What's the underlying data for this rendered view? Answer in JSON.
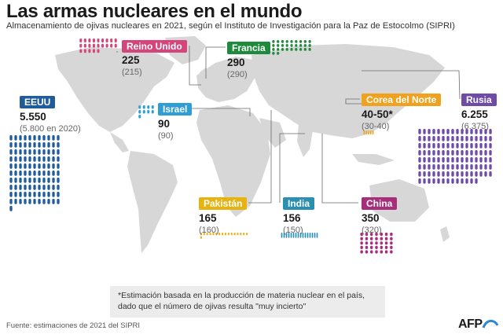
{
  "header": {
    "title": "Las armas nucleares en el mundo",
    "subtitle": "Almacenamiento de ojivas nucleares en 2021, según el Instituto de Investigación para la Paz de Estocolmo (SIPRI)"
  },
  "chart_data": {
    "type": "pictogram",
    "unit": "ojivas nucleares",
    "year": 2021,
    "previous_year": 2020,
    "series": [
      {
        "country": "EEUU",
        "value": 5550,
        "label": "5.550",
        "previous": 5800,
        "previous_label": "(5.800 en 2020)",
        "color": "#1f5c99"
      },
      {
        "country": "Reino Unido",
        "value": 225,
        "label": "225",
        "previous": 215,
        "previous_label": "(215)",
        "color": "#d6457a"
      },
      {
        "country": "Israel",
        "value": 90,
        "label": "90",
        "previous": 90,
        "previous_label": "(90)",
        "color": "#2e9fd6"
      },
      {
        "country": "Francia",
        "value": 290,
        "label": "290",
        "previous": 290,
        "previous_label": "(290)",
        "color": "#1e8a3c"
      },
      {
        "country": "Pakistán",
        "value": 165,
        "label": "165",
        "previous": 160,
        "previous_label": "(160)",
        "color": "#e6b311"
      },
      {
        "country": "India",
        "value": 156,
        "label": "156",
        "previous": 150,
        "previous_label": "(150)",
        "color": "#2a8fb0"
      },
      {
        "country": "China",
        "value": 350,
        "label": "350",
        "previous": 320,
        "previous_label": "(320)",
        "color": "#a62e7a"
      },
      {
        "country": "Corea del Norte",
        "value": 45,
        "value_range": [
          40,
          50
        ],
        "label": "40-50*",
        "previous_range": [
          30,
          40
        ],
        "previous_label": "(30-40)",
        "color": "#f0a21e"
      },
      {
        "country": "Rusia",
        "value": 6255,
        "label": "6.255",
        "previous": 6375,
        "previous_label": "(6.375)",
        "color": "#6d4ba6"
      }
    ]
  },
  "note": "*Estimación basada en la producción de materia nuclear en el país, dado que el número de ojivas resulta \"muy incierto\"",
  "footer": {
    "source": "Fuente: estimaciones de 2021 del SIPRI",
    "logo": "AFP"
  }
}
